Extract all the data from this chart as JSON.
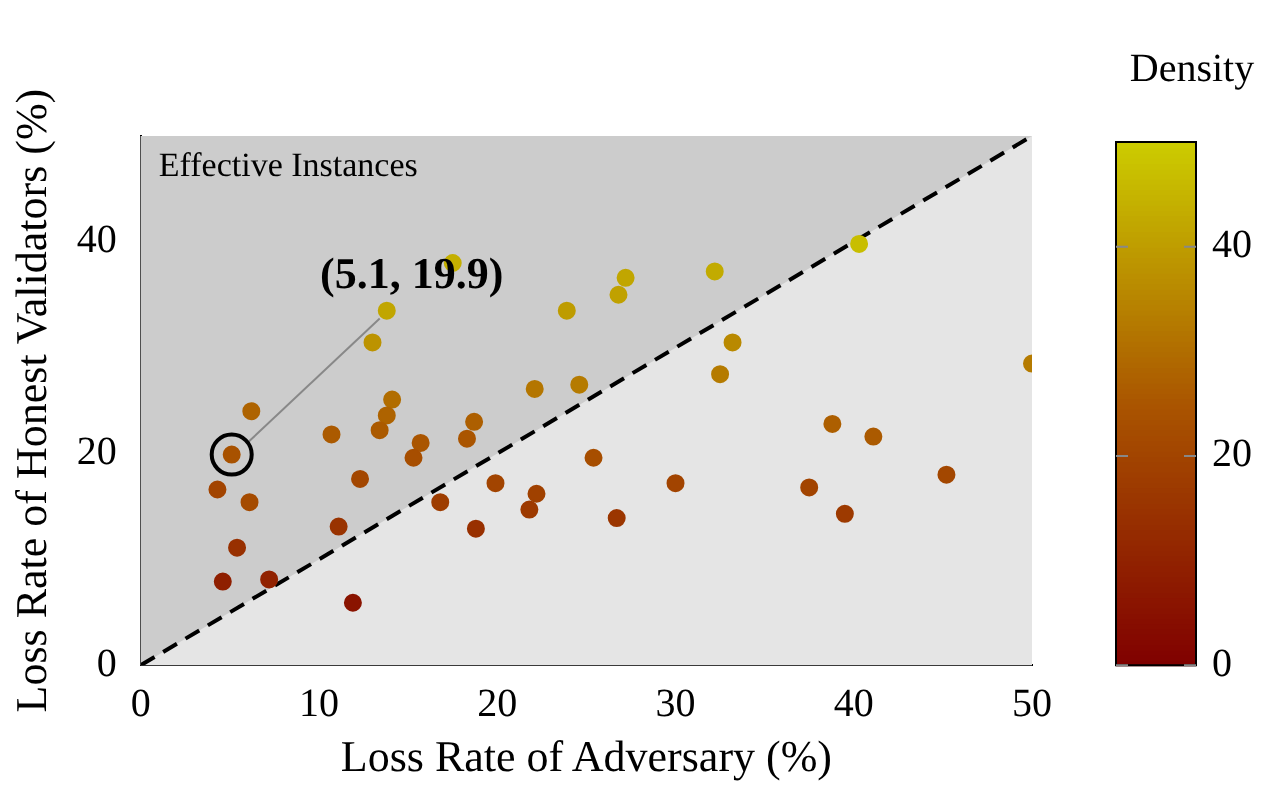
{
  "chart_data": {
    "type": "scatter",
    "xlabel": "Loss Rate of Adversary (%)",
    "ylabel": "Loss Rate of Honest Validators (%)",
    "clabel": "Density",
    "xlim": [
      0,
      50
    ],
    "ylim": [
      0,
      50
    ],
    "xticks": [
      0,
      10,
      20,
      30,
      40,
      50
    ],
    "yticks": [
      0,
      20,
      40
    ],
    "clim": [
      0,
      50
    ],
    "cticks": [
      0,
      20,
      40
    ],
    "grid": false,
    "legend": false,
    "marker": "circle",
    "annotations": [
      "Effective Instances",
      "(5.1, 19.9)"
    ],
    "series": [
      {
        "colors": [
          "#a85200",
          "#a24400",
          "#a54b00",
          "#ae6300",
          "#983000",
          "#8f1f00",
          "#912200",
          "#8a1400",
          "#c4af00",
          "#c1a600",
          "#bc9300",
          "#ab5a00",
          "#b16d00",
          "#ae6300",
          "#ab5a00",
          "#aa5500",
          "#a74e00",
          "#a34700",
          "#993300",
          "#ad5f00",
          "#aa5500",
          "#9e3d00",
          "#a24400",
          "#a04100",
          "#9d3a00",
          "#983000",
          "#b47600",
          "#b57b00",
          "#be9c00",
          "#a74e00",
          "#c1a600",
          "#c0a100",
          "#c2ab00",
          "#c8be00",
          "#b98900",
          "#b57b00",
          "#b57b00",
          "#ad5f00",
          "#ab5a00",
          "#a24400",
          "#9b3600",
          "#a24400",
          "#9d3a00",
          "#a34700"
        ],
        "x": [
          5.1,
          4.3,
          6.1,
          6.2,
          5.4,
          4.6,
          7.2,
          11.9,
          17.5,
          13.8,
          13.0,
          10.7,
          14.1,
          13.8,
          13.4,
          15.7,
          15.3,
          12.3,
          11.1,
          18.7,
          18.3,
          16.8,
          19.9,
          22.2,
          21.8,
          18.8,
          22.1,
          24.6,
          23.9,
          25.4,
          27.2,
          26.8,
          32.2,
          40.3,
          33.2,
          32.5,
          50.0,
          38.8,
          41.1,
          30.0,
          26.7,
          37.5,
          39.5,
          45.2
        ],
        "values": [
          19.9,
          16.6,
          15.4,
          24.0,
          11.1,
          7.9,
          8.1,
          5.9,
          38.0,
          33.5,
          30.5,
          21.8,
          25.1,
          23.6,
          22.2,
          21.0,
          19.6,
          17.6,
          13.1,
          23.0,
          21.4,
          15.4,
          17.2,
          16.2,
          14.7,
          12.9,
          26.1,
          26.5,
          33.5,
          19.6,
          36.6,
          35.0,
          37.2,
          39.8,
          30.5,
          27.5,
          28.5,
          22.8,
          21.6,
          17.2,
          13.9,
          16.8,
          14.3,
          18.0
        ],
        "cvalues": [
          24,
          20,
          22,
          28,
          14,
          9,
          10,
          6,
          44,
          42,
          38,
          26,
          30,
          28,
          26,
          25,
          23,
          21,
          15,
          27,
          25,
          18,
          20,
          19,
          17,
          14,
          32,
          33,
          40,
          23,
          42,
          41,
          43,
          47,
          36,
          33,
          33,
          27,
          26,
          20,
          16,
          20,
          17,
          21
        ]
      },
      {
        "type": "line",
        "x": [
          0,
          50
        ],
        "values": [
          0,
          50
        ],
        "color": "#000000",
        "line_style": "dashed",
        "marker": "none"
      }
    ]
  }
}
